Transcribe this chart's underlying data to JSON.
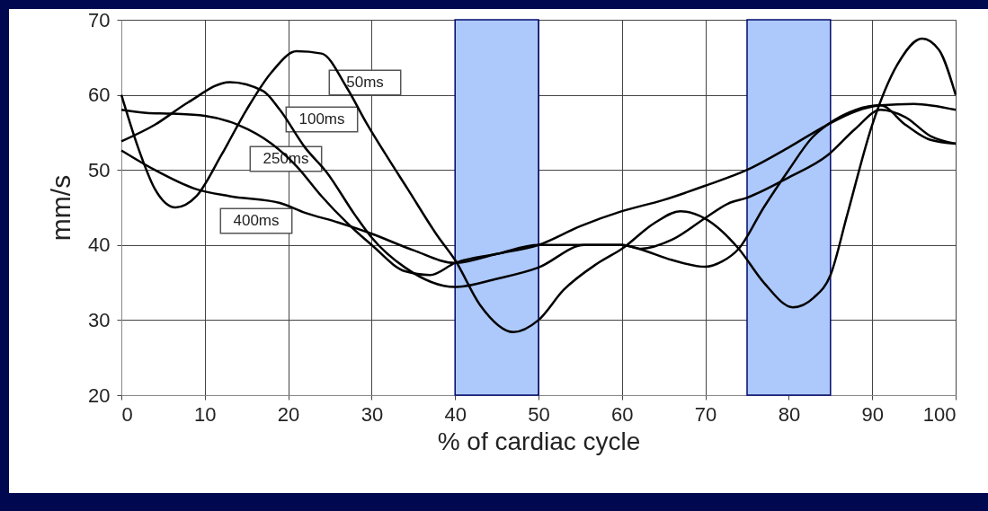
{
  "chart_data": {
    "type": "line",
    "xlabel": "% of cardiac cycle",
    "ylabel": "mm/s",
    "xlim": [
      0,
      100
    ],
    "xticks": [
      0,
      10,
      20,
      30,
      40,
      50,
      60,
      70,
      80,
      90,
      100
    ],
    "ylim": [
      20,
      70
    ],
    "yticks": [
      20,
      30,
      40,
      50,
      60,
      70
    ],
    "grid": true,
    "line_style": "solid",
    "series": [
      {
        "name": "50ms",
        "color": "#000000",
        "x": [
          0,
          2,
          4,
          6.5,
          9,
          12,
          15,
          18,
          21,
          24,
          27,
          29.4,
          32,
          34.3,
          37.9,
          40,
          43,
          47,
          50,
          53,
          57,
          60,
          64,
          67,
          70,
          74,
          77,
          80.5,
          83,
          85,
          87,
          90,
          93,
          96,
          98,
          100
        ],
        "values": [
          60,
          53,
          47.5,
          45,
          46.5,
          52,
          58,
          63,
          65.8,
          65.5,
          61,
          56.2,
          51.5,
          47.5,
          41.2,
          38,
          32,
          28.4,
          30,
          34,
          37.5,
          39.5,
          43,
          44.5,
          43.5,
          39.5,
          35,
          31.7,
          33,
          36,
          44,
          56,
          64,
          67.5,
          66,
          60
        ]
      },
      {
        "name": "100ms",
        "color": "#000000",
        "x": [
          0,
          4,
          8,
          13,
          17,
          19,
          22,
          24.6,
          28,
          30,
          34,
          40,
          45,
          50,
          55.5,
          60,
          62.3,
          66,
          70,
          72.7,
          75,
          80,
          84.6,
          88,
          91,
          94,
          97,
          100
        ],
        "values": [
          53.8,
          56,
          59,
          61.7,
          60.5,
          58,
          53,
          49.7,
          44,
          41,
          37,
          34.4,
          35.5,
          37,
          40,
          40,
          39.5,
          40.7,
          43.6,
          45.5,
          46.3,
          49,
          51.9,
          55.5,
          58,
          57,
          54.5,
          53.5
        ]
      },
      {
        "name": "250ms",
        "color": "#000000",
        "x": [
          0,
          3,
          6,
          10,
          14,
          18,
          21,
          24,
          27,
          30,
          34,
          37,
          40,
          45,
          50,
          55,
          60,
          62,
          66,
          70,
          72,
          74,
          77,
          80,
          82.8,
          84.6,
          88,
          91,
          94,
          97,
          100
        ],
        "values": [
          58,
          57.6,
          57.5,
          57.2,
          56,
          53.5,
          50.5,
          46.5,
          43,
          40,
          36.5,
          36,
          37.6,
          38.8,
          40,
          40,
          40,
          39.5,
          38,
          37.1,
          37.8,
          39.5,
          45,
          50,
          54.3,
          56,
          58,
          58.6,
          56,
          54,
          53.5
        ]
      },
      {
        "name": "400ms",
        "color": "#000000",
        "x": [
          0,
          4,
          8.8,
          13,
          19,
          22,
          26,
          30,
          35,
          40,
          45,
          50,
          55,
          60,
          65,
          70,
          75,
          80,
          84.6,
          88,
          91,
          95,
          100
        ],
        "values": [
          52.6,
          50,
          47.5,
          46.5,
          45.6,
          44.3,
          43,
          41.5,
          39.3,
          37.6,
          38.8,
          40,
          42.5,
          44.5,
          46,
          47.9,
          50,
          53,
          56,
          57.8,
          58.6,
          58.8,
          58
        ]
      }
    ],
    "bands": [
      {
        "axis": "x",
        "from": 40,
        "to": 50,
        "color": "#adc8fa"
      },
      {
        "axis": "x",
        "from": 75,
        "to": 85,
        "color": "#adc8fa"
      }
    ]
  }
}
